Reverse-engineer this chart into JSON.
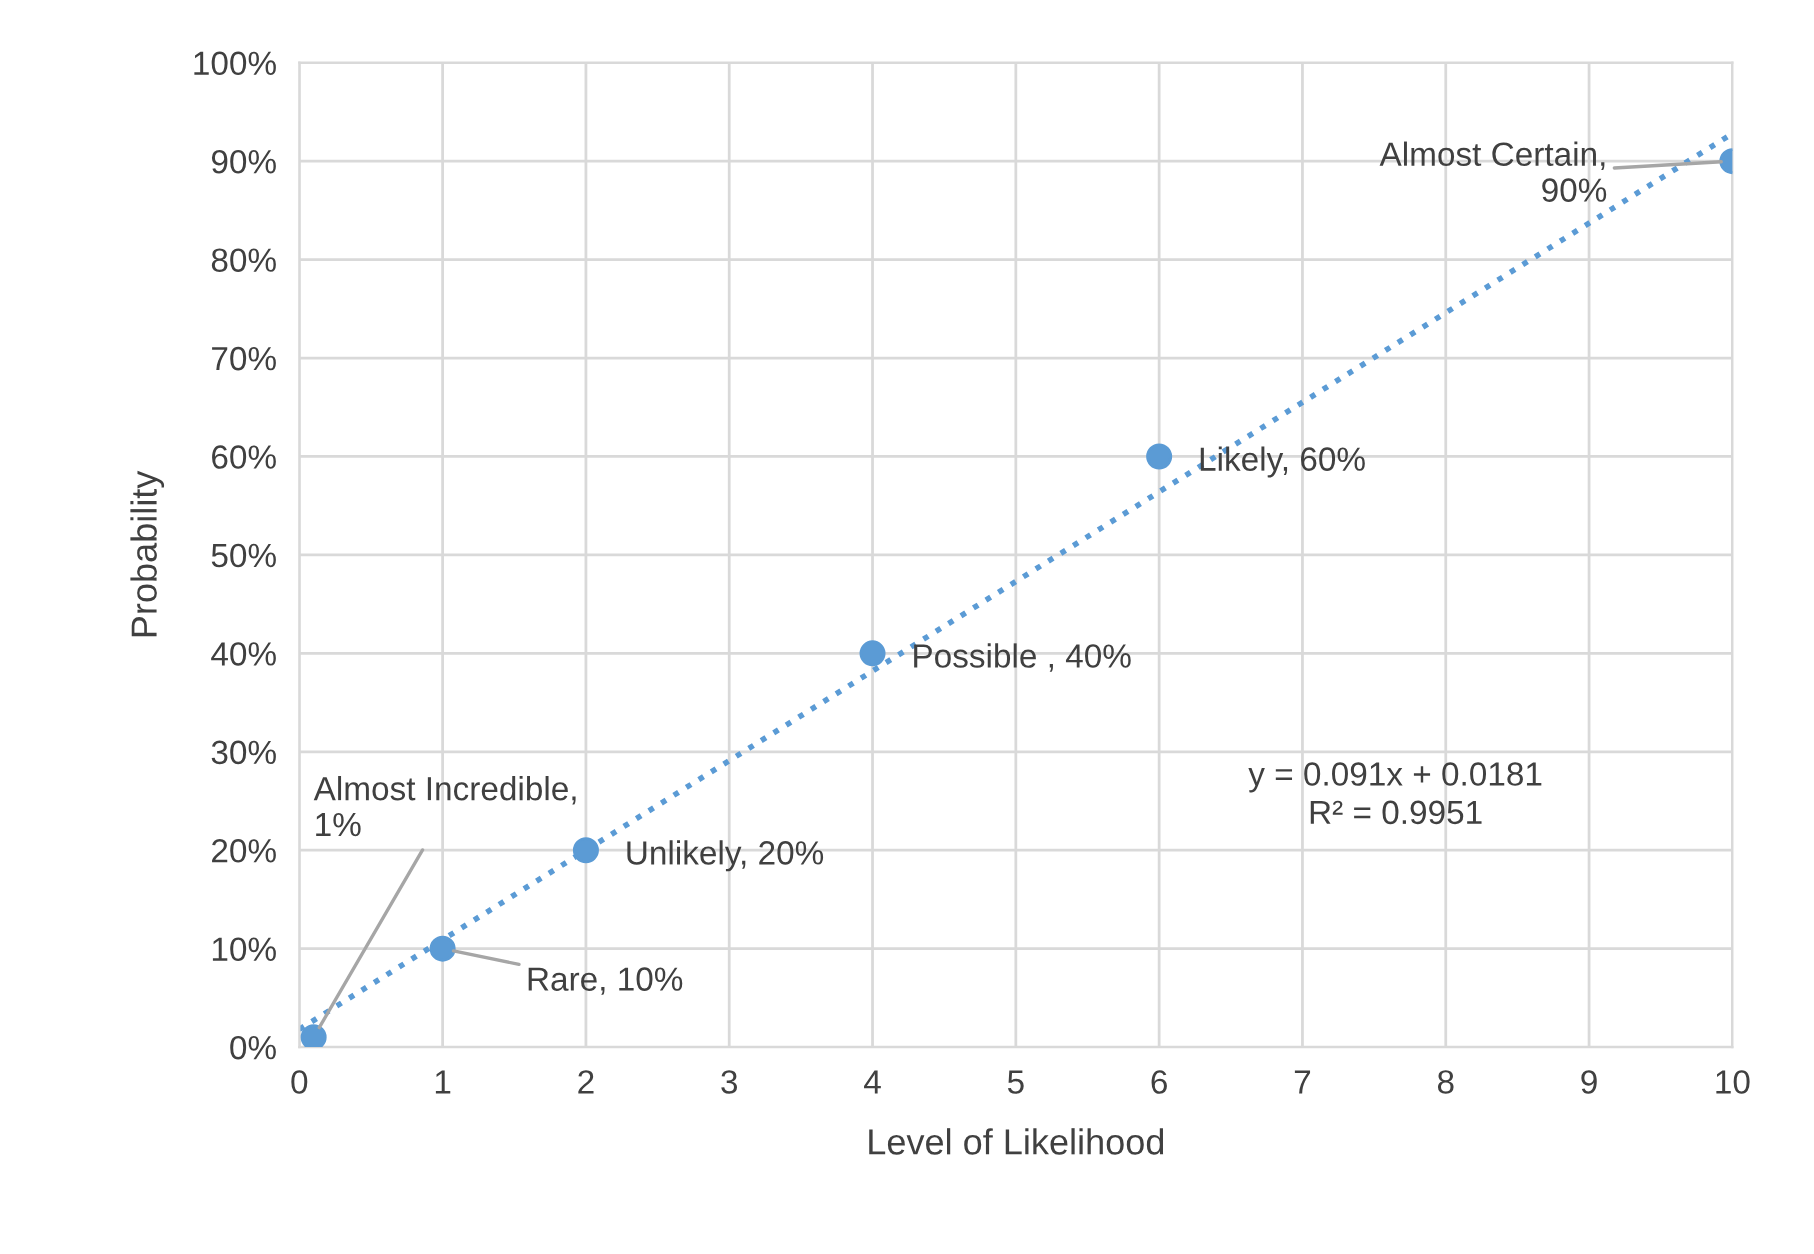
{
  "chart_data": {
    "type": "scatter",
    "xlabel": "Level of Likelihood",
    "ylabel": "Probability",
    "xlim": [
      0,
      10
    ],
    "xticks": [
      0,
      1,
      2,
      3,
      4,
      5,
      6,
      7,
      8,
      9,
      10
    ],
    "ylim": [
      0,
      100
    ],
    "yticks": [
      {
        "value": 0,
        "label": "0%"
      },
      {
        "value": 10,
        "label": "10%"
      },
      {
        "value": 20,
        "label": "20%"
      },
      {
        "value": 30,
        "label": "30%"
      },
      {
        "value": 40,
        "label": "40%"
      },
      {
        "value": 50,
        "label": "50%"
      },
      {
        "value": 60,
        "label": "60%"
      },
      {
        "value": 70,
        "label": "70%"
      },
      {
        "value": 80,
        "label": "80%"
      },
      {
        "value": 90,
        "label": "90%"
      },
      {
        "value": 100,
        "label": "100%"
      }
    ],
    "grid": true,
    "legend": false,
    "series": [
      {
        "color": "#5b9bd5",
        "marker": "circle",
        "x": [
          0.1,
          1,
          2,
          4,
          6,
          10
        ],
        "values": [
          1,
          10,
          20,
          40,
          60,
          90
        ]
      },
      {
        "type": "line",
        "color": "#5b9bd5",
        "marker": "none",
        "line_style": "dotted",
        "x": [
          0,
          10
        ],
        "values": [
          1.8,
          92.8
        ]
      }
    ],
    "annotations": [
      {
        "text": "Almost Incredible,\n1%",
        "x": 0.1,
        "y": 1
      },
      {
        "text": "Rare, 10%",
        "x": 1,
        "y": 10
      },
      {
        "text": "Unlikely, 20%",
        "x": 2,
        "y": 20
      },
      {
        "text": "Possible , 40%",
        "x": 4,
        "y": 40
      },
      {
        "text": "Likely, 60%",
        "x": 6,
        "y": 60
      },
      {
        "text": "Almost Certain,\n90%",
        "x": 10,
        "y": 90
      },
      "y = 0.091x + 0.0181\nR² = 0.9951"
    ]
  }
}
